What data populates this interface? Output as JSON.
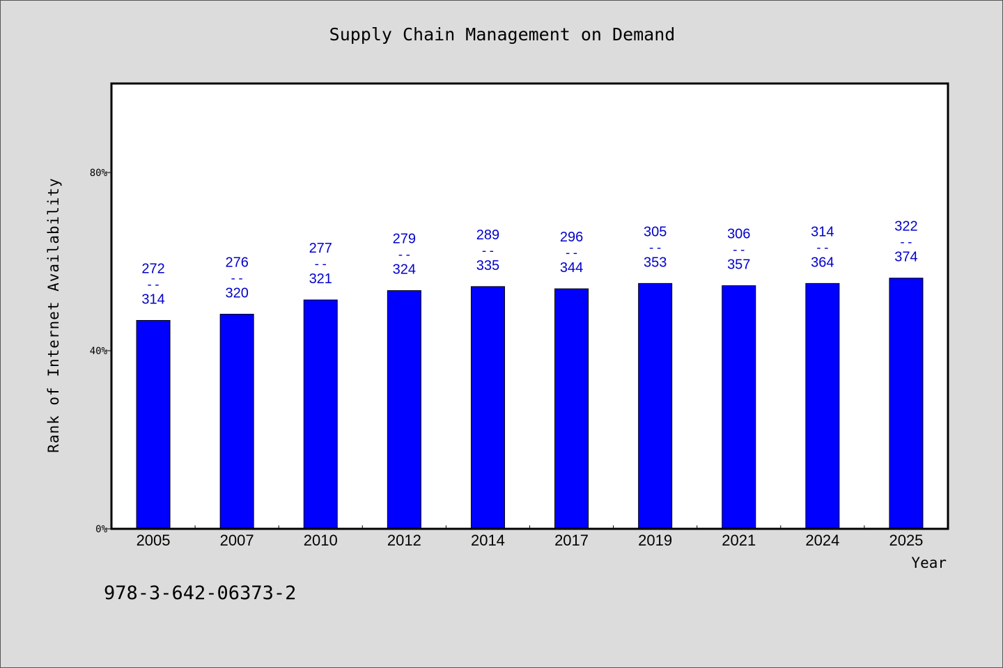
{
  "title": "Supply Chain Management on Demand",
  "footer_code": "978-3-642-06373-2",
  "chart_data": {
    "type": "bar",
    "title": "Supply Chain Management on Demand",
    "xlabel": "Year",
    "ylabel": "Rank of Internet Availability",
    "categories": [
      "2005",
      "2007",
      "2010",
      "2012",
      "2014",
      "2017",
      "2019",
      "2021",
      "2024",
      "2025"
    ],
    "values": [
      46.8,
      48.2,
      51.4,
      53.5,
      54.4,
      53.9,
      55.1,
      54.6,
      55.1,
      56.3
    ],
    "value_unit": "%",
    "range_labels": [
      {
        "low": "272",
        "high": "314"
      },
      {
        "low": "276",
        "high": "320"
      },
      {
        "low": "277",
        "high": "321"
      },
      {
        "low": "279",
        "high": "324"
      },
      {
        "low": "289",
        "high": "335"
      },
      {
        "low": "296",
        "high": "344"
      },
      {
        "low": "305",
        "high": "353"
      },
      {
        "low": "306",
        "high": "357"
      },
      {
        "low": "314",
        "high": "364"
      },
      {
        "low": "322",
        "high": "374"
      }
    ],
    "range_separator": "--",
    "yticks": [
      {
        "value": 0,
        "label": "0%"
      },
      {
        "value": 40,
        "label": "40%"
      },
      {
        "value": 80,
        "label": "80%"
      }
    ],
    "ylim": [
      0,
      100
    ],
    "grid": false,
    "legend": "none",
    "colors": {
      "bar": "#0000ff",
      "label": "#0000cc",
      "background": "#dcdcdc",
      "plot": "#ffffff"
    }
  }
}
